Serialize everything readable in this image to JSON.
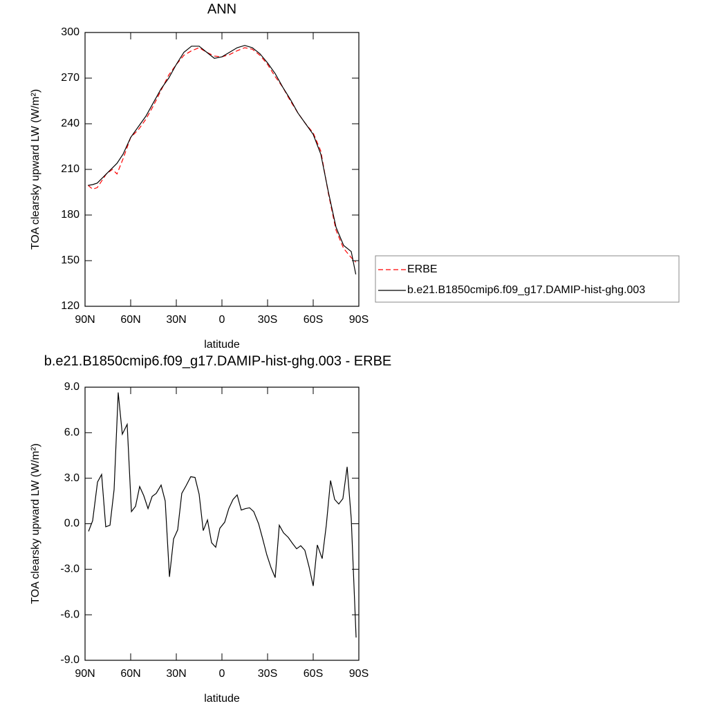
{
  "chart_data": [
    {
      "type": "line",
      "title": "ANN",
      "xlabel": "latitude",
      "ylabel": "TOA clearsky upward LW (W/m²)",
      "x": [
        88,
        85,
        82,
        76,
        72,
        69,
        65,
        60,
        55,
        50,
        45,
        40,
        35,
        30,
        25,
        20,
        15,
        10,
        5,
        0,
        -5,
        -10,
        -15,
        -20,
        -25,
        -30,
        -35,
        -40,
        -45,
        -50,
        -55,
        -60,
        -65,
        -70,
        -75,
        -80,
        -85,
        -88
      ],
      "series": [
        {
          "name": "ERBE",
          "color": "#ff0000",
          "dash": true,
          "values": [
            199.5,
            197,
            198,
            207,
            210,
            207,
            217,
            231,
            236,
            243,
            252,
            262,
            272,
            279,
            285,
            288,
            290,
            287,
            284.5,
            284,
            285.5,
            288,
            290,
            289,
            285,
            279,
            271,
            264,
            255,
            247,
            240,
            234,
            222,
            194,
            170,
            158,
            152,
            149
          ]
        },
        {
          "name": "b.e21.B1850cmip6.f09_g17.DAMIP-hist-ghg.003",
          "color": "#000000",
          "dash": false,
          "values": [
            199.5,
            200,
            201,
            207,
            211,
            214,
            220,
            231,
            238,
            245,
            254,
            263,
            270,
            279,
            287,
            291,
            291,
            287,
            283,
            284,
            287,
            290,
            291.5,
            290,
            286,
            280,
            273,
            264,
            256,
            247,
            240,
            233,
            220,
            195,
            172,
            160,
            156,
            141
          ]
        }
      ],
      "xlim": [
        90,
        -90
      ],
      "xticks": [
        {
          "value": 90,
          "label": "90N"
        },
        {
          "value": 60,
          "label": "60N"
        },
        {
          "value": 30,
          "label": "30N"
        },
        0,
        {
          "value": -30,
          "label": "30S"
        },
        {
          "value": -60,
          "label": "60S"
        },
        {
          "value": -90,
          "label": "90S"
        }
      ],
      "ylim": [
        120,
        300
      ],
      "yticks": [
        120,
        150,
        180,
        210,
        240,
        270,
        300
      ],
      "legend": "right"
    },
    {
      "type": "line",
      "title": "b.e21.B1850cmip6.f09_g17.DAMIP-hist-ghg.003 - ERBE",
      "xlabel": "latitude",
      "ylabel": "TOA clearsky upward LW (W/m²)",
      "x": [
        87.7,
        85,
        81.8,
        79.1,
        76.4,
        73.6,
        70.9,
        68.2,
        65.5,
        62.3,
        59.5,
        56.8,
        54.1,
        51.4,
        48.6,
        45.9,
        43.2,
        40,
        37.3,
        34.5,
        31.8,
        29.1,
        26.4,
        23.6,
        20.5,
        17.7,
        15,
        12.3,
        9.5,
        6.8,
        4.1,
        1.4,
        -1.8,
        -4.5,
        -7.3,
        -10,
        -12.7,
        -15.5,
        -18.2,
        -20.9,
        -24.1,
        -26.8,
        -29.5,
        -32.3,
        -35,
        -37.7,
        -40.5,
        -43.6,
        -46.4,
        -49.1,
        -51.8,
        -54.5,
        -57.3,
        -60,
        -62.7,
        -65.9,
        -68.6,
        -71.4,
        -74.1,
        -76.8,
        -79.5,
        -82.3,
        -85,
        -88.2
      ],
      "series": [
        {
          "color": "#000000",
          "dash": false,
          "values": [
            -0.5,
            0.2,
            2.75,
            3.25,
            -0.2,
            -0.1,
            2.25,
            8.65,
            5.9,
            6.55,
            0.8,
            1.15,
            2.45,
            1.85,
            1.0,
            1.8,
            2.0,
            2.55,
            1.5,
            -3.5,
            -1.0,
            -0.4,
            2.0,
            2.5,
            3.1,
            3.05,
            1.95,
            -0.45,
            0.25,
            -1.25,
            -1.55,
            -0.3,
            0.1,
            1.0,
            1.6,
            1.9,
            0.9,
            1.0,
            1.05,
            0.8,
            0.0,
            -1.0,
            -2.05,
            -2.9,
            -3.55,
            -0.1,
            -0.6,
            -0.9,
            -1.3,
            -1.65,
            -1.45,
            -1.75,
            -2.85,
            -4.1,
            -1.4,
            -2.3,
            -0.1,
            2.85,
            1.6,
            1.3,
            1.65,
            3.75,
            0.35,
            -7.5
          ]
        }
      ],
      "xlim": [
        90,
        -90
      ],
      "xticks": [
        {
          "value": 90,
          "label": "90N"
        },
        {
          "value": 60,
          "label": "60N"
        },
        {
          "value": 30,
          "label": "30N"
        },
        0,
        {
          "value": -30,
          "label": "30S"
        },
        {
          "value": -60,
          "label": "60S"
        },
        {
          "value": -90,
          "label": "90S"
        }
      ],
      "ylim": [
        -9,
        9
      ],
      "yticks": [
        {
          "value": -9,
          "label": "-9.0"
        },
        {
          "value": -6,
          "label": "-6.0"
        },
        {
          "value": -3,
          "label": "-3.0"
        },
        {
          "value": 0,
          "label": "0.0"
        },
        {
          "value": 3,
          "label": "3.0"
        },
        {
          "value": 6,
          "label": "6.0"
        },
        {
          "value": 9,
          "label": "9.0"
        }
      ]
    }
  ]
}
